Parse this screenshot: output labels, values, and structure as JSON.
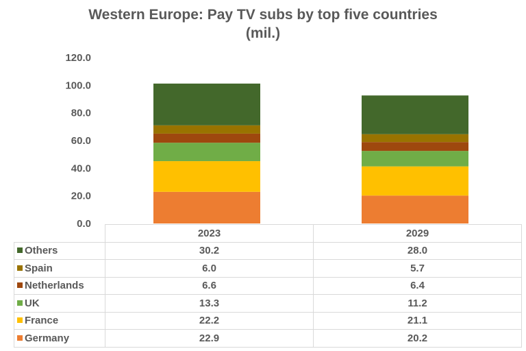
{
  "chart_data": {
    "type": "stacked-bar",
    "title": "Western Europe: Pay TV subs by top five countries (mil.)",
    "title_lines": [
      "Western Europe: Pay TV subs by top five countries",
      "(mil.)"
    ],
    "categories": [
      "2023",
      "2029"
    ],
    "ylim": [
      0,
      120
    ],
    "yticks": [
      "0.0",
      "20.0",
      "40.0",
      "60.0",
      "80.0",
      "100.0",
      "120.0"
    ],
    "grid": false,
    "legend": "data-table",
    "series": [
      {
        "name": "Germany",
        "color": "#ed7d31",
        "values": [
          22.9,
          20.2
        ],
        "labels": [
          "22.9",
          "20.2"
        ]
      },
      {
        "name": "France",
        "color": "#ffc000",
        "values": [
          22.2,
          21.1
        ],
        "labels": [
          "22.2",
          "21.1"
        ]
      },
      {
        "name": "UK",
        "color": "#70ad47",
        "values": [
          13.3,
          11.2
        ],
        "labels": [
          "13.3",
          "11.2"
        ]
      },
      {
        "name": "Netherlands",
        "color": "#9e480e",
        "values": [
          6.6,
          6.4
        ],
        "labels": [
          "6.6",
          "6.4"
        ]
      },
      {
        "name": "Spain",
        "color": "#997300",
        "values": [
          6.0,
          5.7
        ],
        "labels": [
          "6.0",
          "5.7"
        ]
      },
      {
        "name": "Others",
        "color": "#43682b",
        "values": [
          30.2,
          28.0
        ],
        "labels": [
          "30.2",
          "28.0"
        ]
      }
    ]
  }
}
